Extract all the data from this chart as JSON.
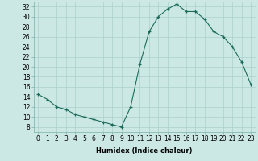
{
  "x": [
    0,
    1,
    2,
    3,
    4,
    5,
    6,
    7,
    8,
    9,
    10,
    11,
    12,
    13,
    14,
    15,
    16,
    17,
    18,
    19,
    20,
    21,
    22,
    23
  ],
  "y": [
    14.5,
    13.5,
    12.0,
    11.5,
    10.5,
    10.0,
    9.5,
    9.0,
    8.5,
    8.0,
    12.0,
    20.5,
    27.0,
    30.0,
    31.5,
    32.5,
    31.0,
    31.0,
    29.5,
    27.0,
    26.0,
    24.0,
    21.0,
    16.5
  ],
  "line_color": "#1a6b5a",
  "marker": "+",
  "marker_color": "#1a6b5a",
  "bg_color": "#cce8e4",
  "grid_color": "#aad0cc",
  "xlabel": "Humidex (Indice chaleur)",
  "ylabel_ticks": [
    8,
    10,
    12,
    14,
    16,
    18,
    20,
    22,
    24,
    26,
    28,
    30,
    32
  ],
  "xlim": [
    -0.5,
    23.5
  ],
  "ylim": [
    7,
    33
  ],
  "tick_fontsize": 5.5,
  "xlabel_fontsize": 6.0
}
